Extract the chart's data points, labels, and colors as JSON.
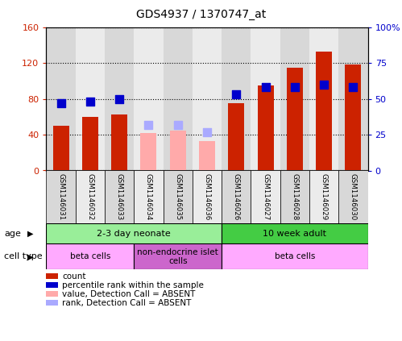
{
  "title": "GDS4937 / 1370747_at",
  "samples": [
    "GSM1146031",
    "GSM1146032",
    "GSM1146033",
    "GSM1146034",
    "GSM1146035",
    "GSM1146036",
    "GSM1146026",
    "GSM1146027",
    "GSM1146028",
    "GSM1146029",
    "GSM1146030"
  ],
  "count_values": [
    50,
    60,
    63,
    null,
    null,
    null,
    75,
    95,
    115,
    133,
    118
  ],
  "rank_values": [
    47,
    48,
    50,
    null,
    null,
    null,
    53,
    58,
    58,
    60,
    58
  ],
  "count_absent": [
    null,
    null,
    null,
    42,
    45,
    33,
    null,
    null,
    null,
    null,
    null
  ],
  "rank_absent": [
    null,
    null,
    null,
    32,
    32,
    27,
    null,
    null,
    null,
    null,
    null
  ],
  "count_color": "#cc2200",
  "rank_color": "#0000cc",
  "count_absent_color": "#ffaaaa",
  "rank_absent_color": "#aaaaff",
  "ylim_left": [
    0,
    160
  ],
  "ylim_right": [
    0,
    100
  ],
  "yticks_left": [
    0,
    40,
    80,
    120,
    160
  ],
  "ytick_labels_left": [
    "0",
    "40",
    "80",
    "120",
    "160"
  ],
  "yticks_right": [
    0,
    25,
    50,
    75,
    100
  ],
  "ytick_labels_right": [
    "0",
    "25",
    "50",
    "75",
    "100%"
  ],
  "age_groups": [
    {
      "label": "2-3 day neonate",
      "start": 0,
      "end": 6,
      "color": "#99ee99"
    },
    {
      "label": "10 week adult",
      "start": 6,
      "end": 11,
      "color": "#44cc44"
    }
  ],
  "cell_type_groups": [
    {
      "label": "beta cells",
      "start": 0,
      "end": 3,
      "color": "#ffaaff"
    },
    {
      "label": "non-endocrine islet\ncells",
      "start": 3,
      "end": 6,
      "color": "#cc66cc"
    },
    {
      "label": "beta cells",
      "start": 6,
      "end": 11,
      "color": "#ffaaff"
    }
  ],
  "age_label": "age",
  "cell_type_label": "cell type",
  "legend_items": [
    {
      "label": "count",
      "color": "#cc2200"
    },
    {
      "label": "percentile rank within the sample",
      "color": "#0000cc"
    },
    {
      "label": "value, Detection Call = ABSENT",
      "color": "#ffaaaa"
    },
    {
      "label": "rank, Detection Call = ABSENT",
      "color": "#aaaaff"
    }
  ],
  "bar_width": 0.55,
  "rank_marker_size": 48,
  "tick_color_left": "#cc2200",
  "tick_color_right": "#0000cc",
  "col_bg_even": "#d8d8d8",
  "col_bg_odd": "#ebebeb"
}
